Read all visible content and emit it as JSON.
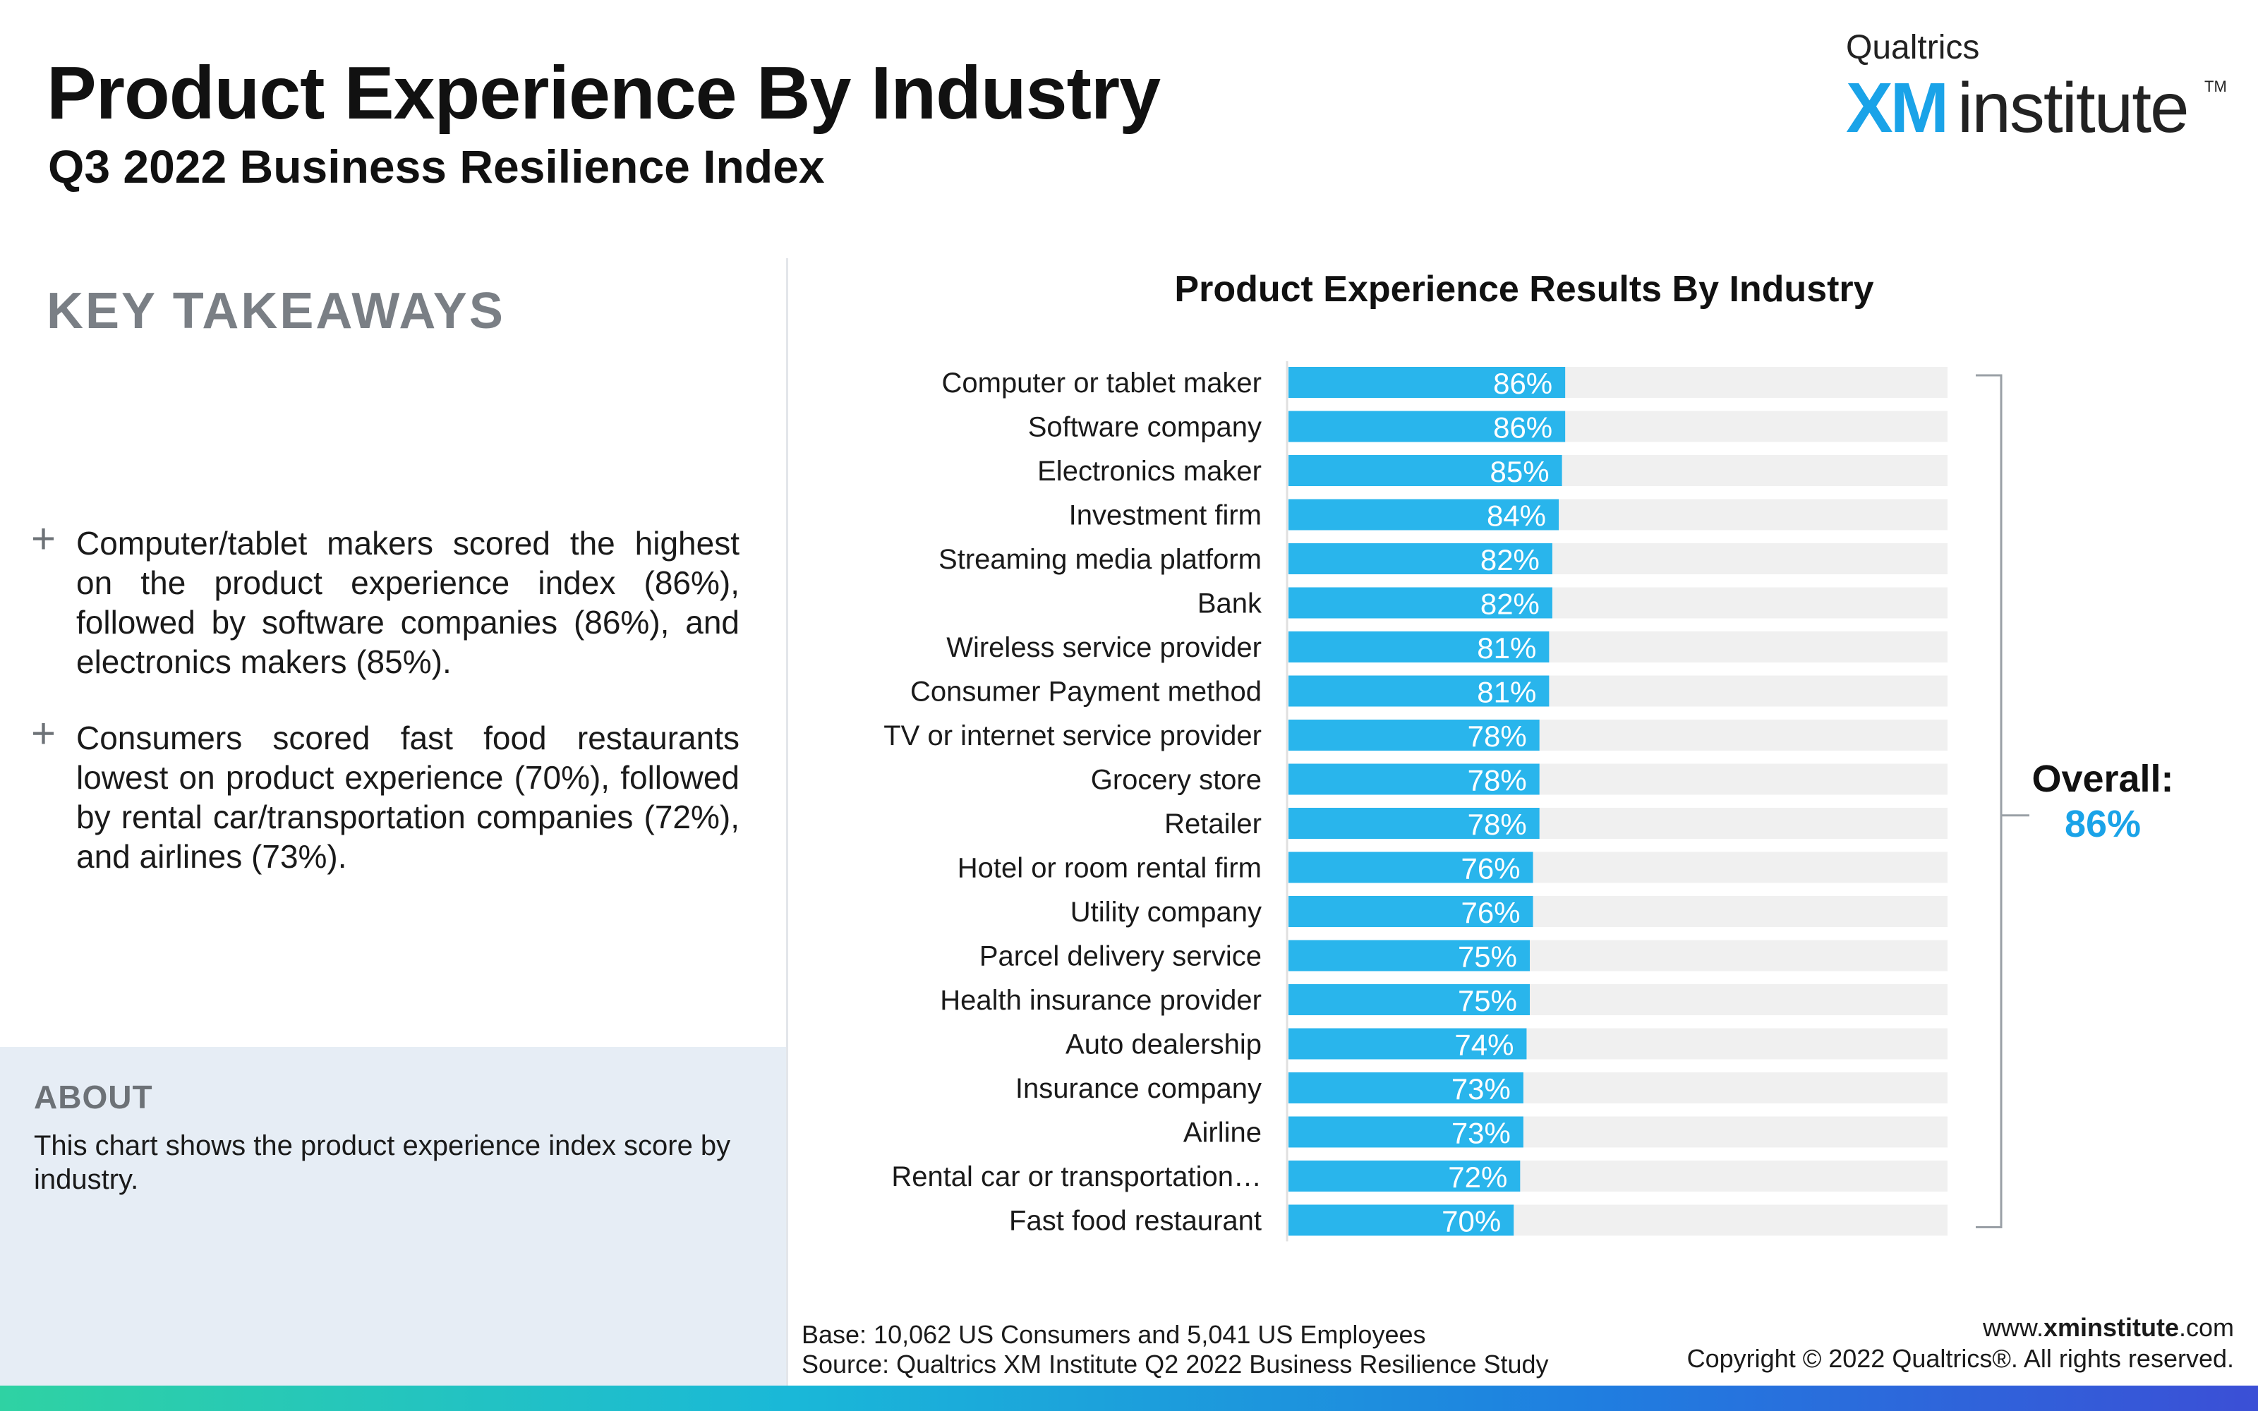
{
  "header": {
    "title": "Product Experience By Industry",
    "subtitle": "Q3 2022 Business Resilience Index"
  },
  "logo": {
    "top": "Qualtrics",
    "xm": "XM",
    "institute": "institute",
    "tm": "TM"
  },
  "takeaways": {
    "heading": "KEY TAKEAWAYS",
    "items": [
      "Computer/tablet makers scored the highest on the product experience index (86%), followed by software companies (86%), and electronics makers (85%).",
      "Consumers scored fast food restaurants lowest on product experience (70%), followed by rental car/transportation companies (72%), and airlines (73%)."
    ],
    "bullet": "+"
  },
  "about": {
    "heading": "ABOUT",
    "text": "This chart shows the product experience index score by industry."
  },
  "chart_data": {
    "type": "bar",
    "orientation": "horizontal",
    "title": "Product Experience Results By Industry",
    "categories": [
      "Computer or tablet maker",
      "Software company",
      "Electronics maker",
      "Investment firm",
      "Streaming media platform",
      "Bank",
      "Wireless service provider",
      "Consumer Payment method",
      "TV or internet service provider",
      "Grocery store",
      "Retailer",
      "Hotel or room rental firm",
      "Utility company",
      "Parcel delivery service",
      "Health insurance provider",
      "Auto dealership",
      "Insurance company",
      "Airline",
      "Rental car or transportation…",
      "Fast food restaurant"
    ],
    "values": [
      86,
      86,
      85,
      84,
      82,
      82,
      81,
      81,
      78,
      78,
      78,
      76,
      76,
      75,
      75,
      74,
      73,
      73,
      72,
      70
    ],
    "value_labels": [
      "86%",
      "86%",
      "85%",
      "84%",
      "82%",
      "82%",
      "81%",
      "81%",
      "78%",
      "78%",
      "78%",
      "76%",
      "76%",
      "75%",
      "75%",
      "74%",
      "73%",
      "73%",
      "72%",
      "70%"
    ],
    "xlim": [
      0,
      100
    ],
    "grid": false,
    "legend": "none",
    "colors": {
      "bar": "#29b5ec",
      "track": "#f0f0f0",
      "label": "#ffffff"
    }
  },
  "overall": {
    "label": "Overall:",
    "value": "86%"
  },
  "footer": {
    "base": "Base: 10,062 US Consumers and 5,041 US Employees",
    "source": "Source: Qualtrics XM Institute Q2 2022 Business Resilience Study",
    "website_prefix": "www.",
    "website_bold": "xminstitute",
    "website_suffix": ".com",
    "copyright": "Copyright © 2022 Qualtrics®. All rights reserved."
  }
}
